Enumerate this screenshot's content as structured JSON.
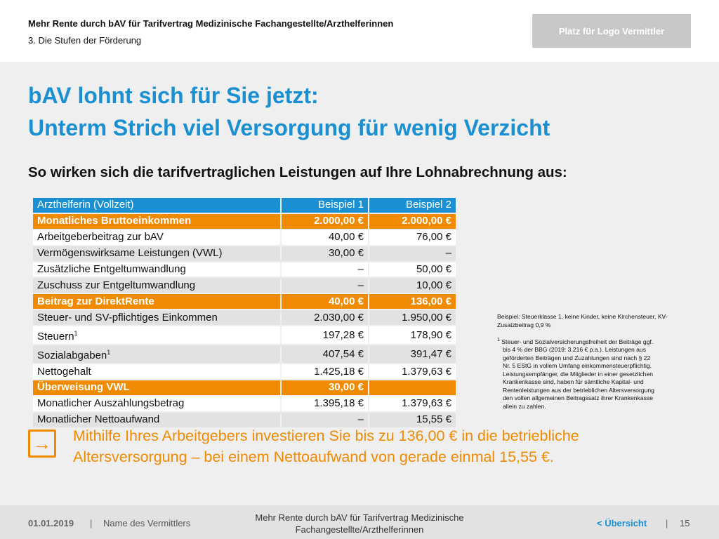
{
  "header": {
    "title": "Mehr Rente durch bAV für Tarifvertrag Medizinische Fachangestellte/Arzthelferinnen",
    "subtitle": "3. Die Stufen der Förderung",
    "logo_placeholder": "Platz für Logo Vermittler"
  },
  "main": {
    "title_line1": "bAV lohnt sich für Sie jetzt:",
    "title_line2": "Unterm Strich viel Versorgung für wenig Verzicht",
    "subtitle": "So wirken sich die tarifvertraglichen Leistungen auf Ihre Lohnabrechnung aus:"
  },
  "table": {
    "rows": [
      {
        "label": "Arzthelferin (Vollzeit)",
        "sup": "",
        "v1": "Beispiel 1",
        "v2": "Beispiel 2",
        "style": "head"
      },
      {
        "label": "Monatliches Bruttoeinkommen",
        "sup": "",
        "v1": "2.000,00 €",
        "v2": "2.000,00 €",
        "style": "orange"
      },
      {
        "label": "Arbeitgeberbeitrag zur bAV",
        "sup": "",
        "v1": "40,00 €",
        "v2": "76,00 €",
        "style": "light"
      },
      {
        "label": "Vermögenswirksame Leistungen (VWL)",
        "sup": "",
        "v1": "30,00 €",
        "v2": "–",
        "style": "gray"
      },
      {
        "label": "Zusätzliche Entgeltumwandlung",
        "sup": "",
        "v1": "–",
        "v2": "50,00 €",
        "style": "light"
      },
      {
        "label": "Zuschuss zur Entgeltumwandlung",
        "sup": "",
        "v1": "–",
        "v2": "10,00 €",
        "style": "gray"
      },
      {
        "label": "Beitrag zur DirektRente",
        "sup": "",
        "v1": "40,00 €",
        "v2": "136,00 €",
        "style": "orange"
      },
      {
        "label": "Steuer- und SV-pflichtiges Einkommen",
        "sup": "",
        "v1": "2.030,00 €",
        "v2": "1.950,00 €",
        "style": "gray"
      },
      {
        "label": "Steuern",
        "sup": "1",
        "v1": "197,28 €",
        "v2": "178,90 €",
        "style": "light"
      },
      {
        "label": "Sozialabgaben",
        "sup": "1",
        "v1": "407,54 €",
        "v2": "391,47 €",
        "style": "gray"
      },
      {
        "label": "Nettogehalt",
        "sup": "",
        "v1": "1.425,18 €",
        "v2": "1.379,63 €",
        "style": "light"
      },
      {
        "label": "Überweisung VWL",
        "sup": "",
        "v1": "30,00 €",
        "v2": "",
        "style": "orange"
      },
      {
        "label": "Monatlicher Auszahlungsbetrag",
        "sup": "",
        "v1": "1.395,18 €",
        "v2": "1.379,63 €",
        "style": "light"
      },
      {
        "label": "Monatlicher Nettoaufwand",
        "sup": "",
        "v1": "–",
        "v2": "15,55 €",
        "style": "gray"
      }
    ]
  },
  "notes": {
    "example": "Beispiel: Steuerklasse 1, keine Kinder, keine Kirchensteuer, KV-Zusatzbeitrag 0,9 %",
    "footnote_mark": "1",
    "footnote_lines": [
      "Steuer- und Sozialversicherungsfreiheit der Beiträge ggf.",
      "bis 4 % der BBG (2019: 3.216 € p.a.). Leistungen aus",
      "geförderten Beiträgen und Zuzahlungen sind nach § 22",
      "Nr. 5 EStG in vollem Umfang einkommensteuerpflichtig.",
      "Leistungsempfänger, die Mitglieder in einer gesetzlichen",
      "Krankenkasse sind, haben für sämtliche Kapital- und",
      "Rentenleistungen aus der betrieblichen Altersversorgung",
      "den vollen allgemeinen Beitragssatz ihrer Krankenkasse",
      "allein zu zahlen."
    ]
  },
  "callout": {
    "icon": "arrow-right-icon",
    "text": "Mithilfe Ihres Arbeitgebers investieren Sie bis zu 136,00 € in die betriebliche Altersversorgung – bei einem Nettoaufwand von gerade einmal 15,55 €."
  },
  "footer": {
    "date": "01.01.2019",
    "separator": "|",
    "agent_name": "Name des Vermittlers",
    "center_text": "Mehr Rente durch bAV für Tarifvertrag Medizinische Fachangestellte/Arzthelferinnen",
    "back_link": "< Übersicht",
    "page_number": "15"
  },
  "colors": {
    "accent_blue": "#1a8fd1",
    "accent_orange": "#f08a00",
    "background": "#efefef",
    "row_gray": "#e2e2e2"
  }
}
